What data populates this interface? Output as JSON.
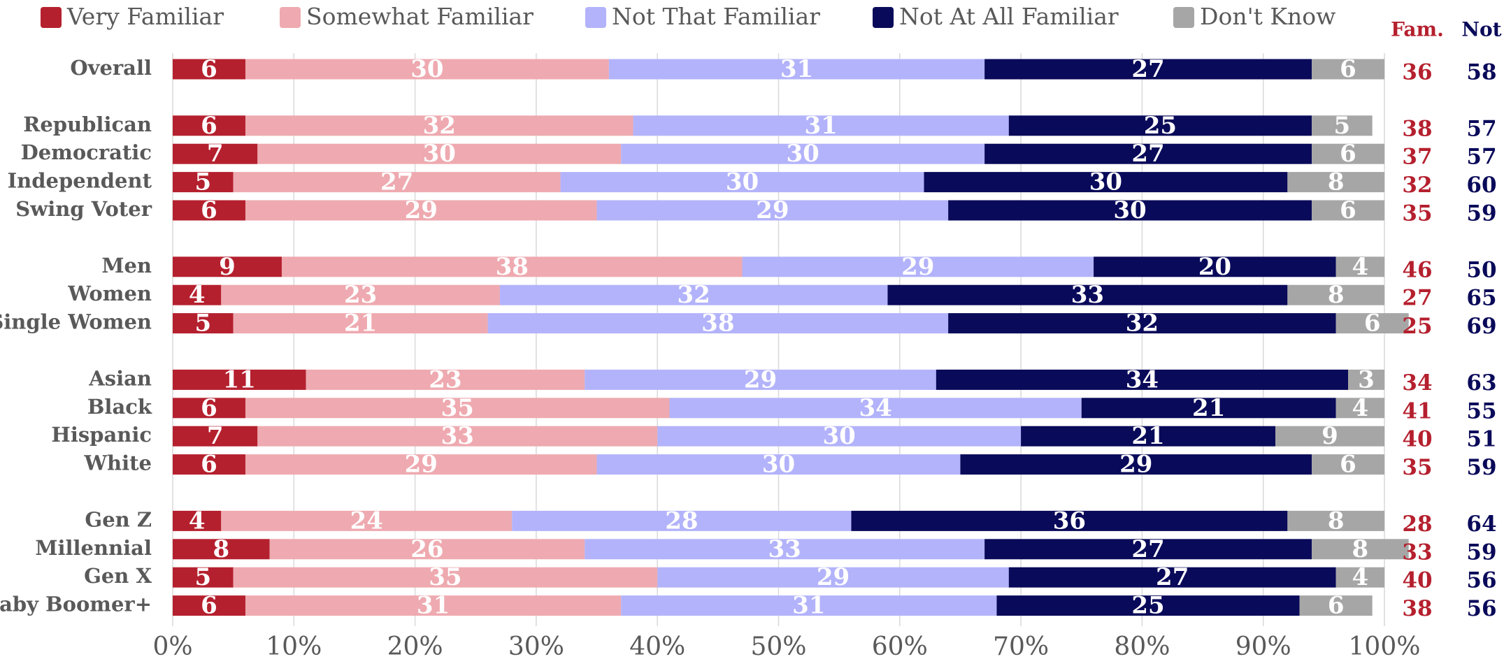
{
  "chart_data": {
    "type": "stacked_bar_horizontal",
    "categories": [
      "Overall",
      null,
      "Republican",
      "Democratic",
      "Independent",
      "Swing Voter",
      null,
      "Men",
      "Women",
      "Single Women",
      null,
      "Asian",
      "Black",
      "Hispanic",
      "White",
      null,
      "Gen Z",
      "Millennial",
      "Gen X",
      "Baby Boomer+"
    ],
    "series": [
      {
        "name": "Very Familiar",
        "color": "#b5202e",
        "values": [
          6,
          null,
          6,
          7,
          5,
          6,
          null,
          9,
          4,
          5,
          null,
          11,
          6,
          7,
          6,
          null,
          4,
          8,
          5,
          6
        ]
      },
      {
        "name": "Somewhat Familiar",
        "color": "#eeaab0",
        "values": [
          30,
          null,
          32,
          30,
          27,
          29,
          null,
          38,
          23,
          21,
          null,
          23,
          35,
          33,
          29,
          null,
          24,
          26,
          35,
          31
        ]
      },
      {
        "name": "Not That Familiar",
        "color": "#b3b3fb",
        "values": [
          31,
          null,
          31,
          30,
          30,
          29,
          null,
          29,
          32,
          38,
          null,
          29,
          34,
          30,
          30,
          null,
          28,
          33,
          29,
          31
        ]
      },
      {
        "name": "Not At All Familiar",
        "color": "#0a0a5a",
        "values": [
          27,
          null,
          25,
          27,
          30,
          30,
          null,
          20,
          33,
          32,
          null,
          34,
          21,
          21,
          29,
          null,
          36,
          27,
          27,
          25
        ]
      },
      {
        "name": "Don't Know",
        "color": "#a6a6a6",
        "values": [
          6,
          null,
          5,
          6,
          8,
          6,
          null,
          4,
          8,
          6,
          null,
          3,
          4,
          9,
          6,
          null,
          8,
          8,
          4,
          6
        ]
      }
    ],
    "summary_columns": [
      {
        "name": "Fam.",
        "color": "#b5202e",
        "values": [
          36,
          null,
          38,
          37,
          32,
          35,
          null,
          46,
          27,
          25,
          null,
          34,
          41,
          40,
          35,
          null,
          28,
          33,
          40,
          38
        ]
      },
      {
        "name": "Not",
        "color": "#0a0a5a",
        "values": [
          58,
          null,
          57,
          57,
          60,
          59,
          null,
          50,
          65,
          69,
          null,
          63,
          55,
          51,
          59,
          null,
          64,
          59,
          56,
          56
        ]
      }
    ],
    "xlim": [
      0,
      100
    ],
    "xticks": [
      {
        "value": 0,
        "label": "0%"
      },
      {
        "value": 10,
        "label": "10%"
      },
      {
        "value": 20,
        "label": "20%"
      },
      {
        "value": 30,
        "label": "30%"
      },
      {
        "value": 40,
        "label": "40%"
      },
      {
        "value": 50,
        "label": "50%"
      },
      {
        "value": 60,
        "label": "60%"
      },
      {
        "value": 70,
        "label": "70%"
      },
      {
        "value": 80,
        "label": "80%"
      },
      {
        "value": 90,
        "label": "90%"
      },
      {
        "value": 100,
        "label": "100%"
      }
    ],
    "grid": true,
    "legend": "top"
  }
}
